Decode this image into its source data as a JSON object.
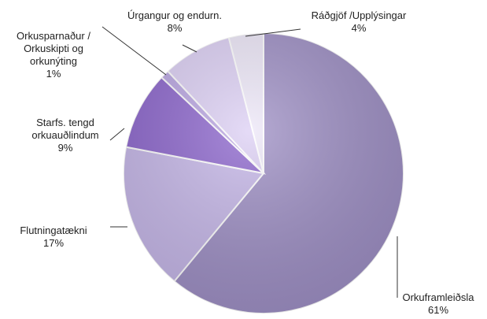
{
  "chart_data": {
    "type": "pie",
    "categories": [
      "Orkuframleiðsla",
      "Flutningatækni",
      "Starfs. tengd orkuauðlindum",
      "Orkusparnaður / Orkuskipti og orkunýting",
      "Úrgangur og endurn.",
      "Ráðgjöf /Upplýsingar"
    ],
    "values": [
      61,
      17,
      9,
      1,
      8,
      4
    ],
    "value_labels": [
      "61%",
      "17%",
      "9%",
      "1%",
      "8%",
      "4%"
    ],
    "colors": [
      "#9d8ec4",
      "#c5b6e8",
      "#8b64cc",
      "#b9a5e2",
      "#dccff4",
      "#ede7f8"
    ]
  }
}
